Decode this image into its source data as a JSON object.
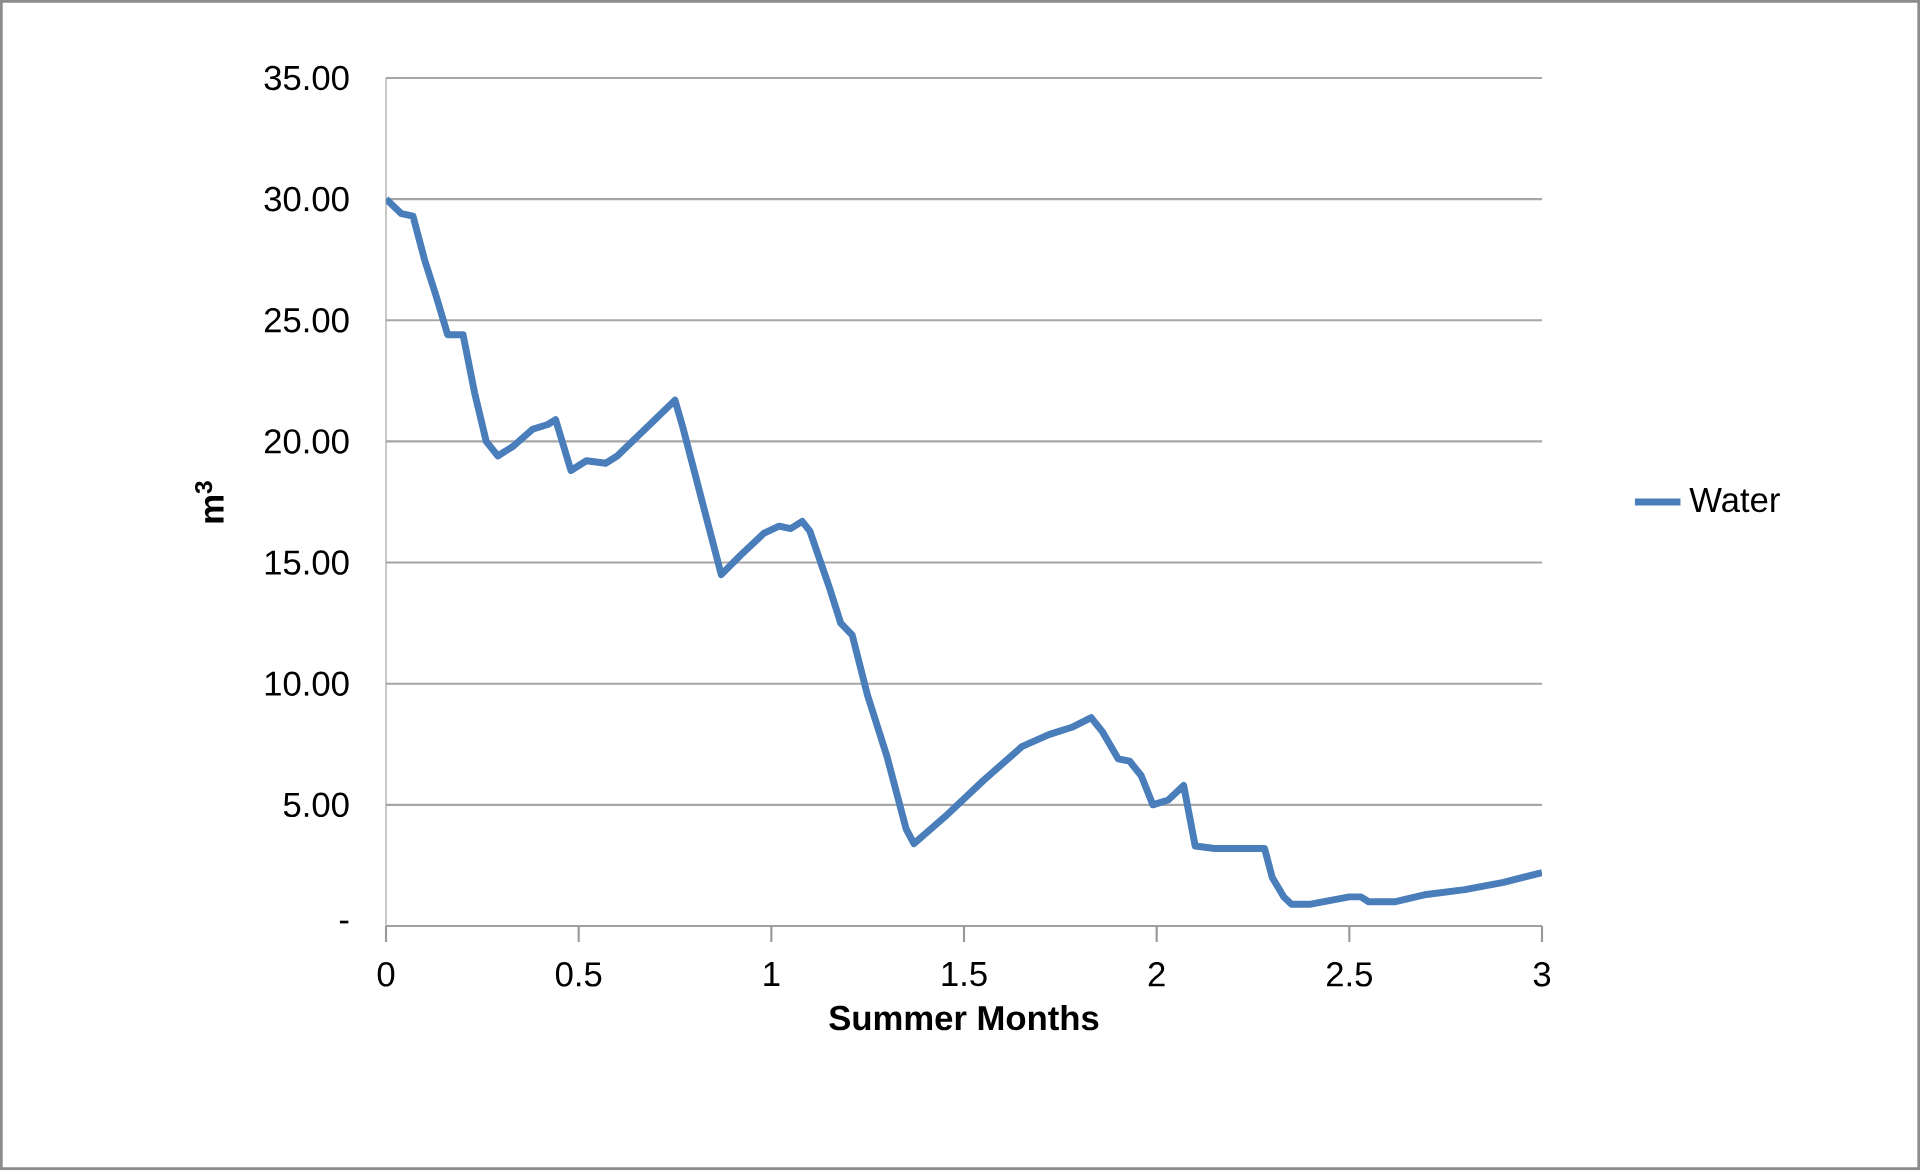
{
  "chart_data": {
    "type": "line",
    "xlabel": "Summer Months",
    "ylabel": "m$^{3}$",
    "x": [
      0,
      0.04,
      0.07,
      0.1,
      0.13,
      0.16,
      0.2,
      0.23,
      0.26,
      0.29,
      0.33,
      0.38,
      0.42,
      0.44,
      0.48,
      0.52,
      0.57,
      0.6,
      0.75,
      0.77,
      0.87,
      0.92,
      0.98,
      1.02,
      1.05,
      1.08,
      1.1,
      1.15,
      1.18,
      1.21,
      1.25,
      1.3,
      1.35,
      1.37,
      1.45,
      1.55,
      1.65,
      1.72,
      1.78,
      1.83,
      1.86,
      1.9,
      1.93,
      1.96,
      1.99,
      2.03,
      2.07,
      2.1,
      2.15,
      2.28,
      2.3,
      2.33,
      2.35,
      2.4,
      2.5,
      2.53,
      2.55,
      2.62,
      2.7,
      2.8,
      2.9,
      3
    ],
    "series": [
      {
        "name": "Water",
        "color": "#4a7ebb",
        "values": [
          30.0,
          29.4,
          29.3,
          27.5,
          26.0,
          24.4,
          24.4,
          22.0,
          20.0,
          19.4,
          19.8,
          20.5,
          20.7,
          20.9,
          18.8,
          19.2,
          19.1,
          19.4,
          21.7,
          20.6,
          14.5,
          15.3,
          16.2,
          16.5,
          16.4,
          16.7,
          16.3,
          14.0,
          12.5,
          12.0,
          9.5,
          7.0,
          4.0,
          3.4,
          4.5,
          6.0,
          7.4,
          7.9,
          8.2,
          8.6,
          8.0,
          6.9,
          6.8,
          6.2,
          5.0,
          5.2,
          5.8,
          3.3,
          3.2,
          3.2,
          2.0,
          1.2,
          0.9,
          0.9,
          1.2,
          1.2,
          1.0,
          1.0,
          1.3,
          1.5,
          1.8,
          2.2
        ]
      }
    ],
    "xlim": [
      0,
      3
    ],
    "xticks": [
      0,
      0.5,
      1,
      1.5,
      2,
      2.5,
      3
    ],
    "ylim": [
      0,
      35
    ],
    "yticks": [
      {
        "value": 0,
        "label": "-"
      },
      {
        "value": 5,
        "label": "5.00"
      },
      {
        "value": 10,
        "label": "10.00"
      },
      {
        "value": 15,
        "label": "15.00"
      },
      {
        "value": 20,
        "label": "20.00"
      },
      {
        "value": 25,
        "label": "25.00"
      },
      {
        "value": 30,
        "label": "30.00"
      },
      {
        "value": 35,
        "label": "35.00"
      }
    ],
    "grid": "y",
    "legend": "right",
    "marker": "none",
    "line_style": "solid"
  }
}
